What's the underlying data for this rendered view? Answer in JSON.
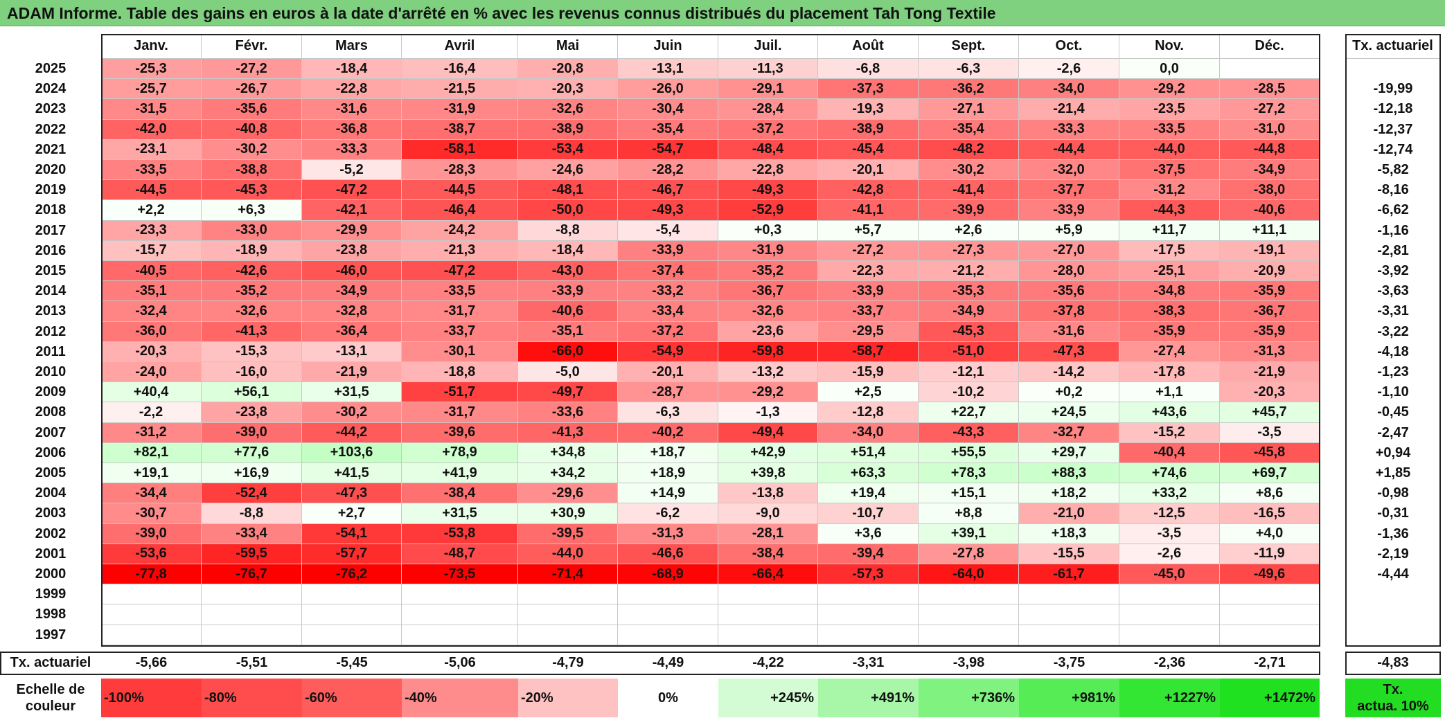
{
  "title": "ADAM Informe. Table des gains en euros à la date d'arrêté en % avec les revenus connus distribués du placement Tah Tong Textile",
  "months": [
    "Janv.",
    "Févr.",
    "Mars",
    "Avril",
    "Mai",
    "Juin",
    "Juil.",
    "Août",
    "Sept.",
    "Oct.",
    "Nov.",
    "Déc."
  ],
  "rate_header": "Tx. actuariel",
  "rows": [
    {
      "year": "2025",
      "values": [
        "-25,3",
        "-27,2",
        "-18,4",
        "-16,4",
        "-20,8",
        "-13,1",
        "-11,3",
        "-6,8",
        "-6,3",
        "-2,6",
        "0,0",
        ""
      ],
      "rate": ""
    },
    {
      "year": "2024",
      "values": [
        "-25,7",
        "-26,7",
        "-22,8",
        "-21,5",
        "-20,3",
        "-26,0",
        "-29,1",
        "-37,3",
        "-36,2",
        "-34,0",
        "-29,2",
        "-28,5"
      ],
      "rate": "-19,99"
    },
    {
      "year": "2023",
      "values": [
        "-31,5",
        "-35,6",
        "-31,6",
        "-31,9",
        "-32,6",
        "-30,4",
        "-28,4",
        "-19,3",
        "-27,1",
        "-21,4",
        "-23,5",
        "-27,2"
      ],
      "rate": "-12,18"
    },
    {
      "year": "2022",
      "values": [
        "-42,0",
        "-40,8",
        "-36,8",
        "-38,7",
        "-38,9",
        "-35,4",
        "-37,2",
        "-38,9",
        "-35,4",
        "-33,3",
        "-33,5",
        "-31,0"
      ],
      "rate": "-12,37"
    },
    {
      "year": "2021",
      "values": [
        "-23,1",
        "-30,2",
        "-33,3",
        "-58,1",
        "-53,4",
        "-54,7",
        "-48,4",
        "-45,4",
        "-48,2",
        "-44,4",
        "-44,0",
        "-44,8"
      ],
      "rate": "-12,74"
    },
    {
      "year": "2020",
      "values": [
        "-33,5",
        "-38,8",
        "-5,2",
        "-28,3",
        "-24,6",
        "-28,2",
        "-22,8",
        "-20,1",
        "-30,2",
        "-32,0",
        "-37,5",
        "-34,9"
      ],
      "rate": "-5,82"
    },
    {
      "year": "2019",
      "values": [
        "-44,5",
        "-45,3",
        "-47,2",
        "-44,5",
        "-48,1",
        "-46,7",
        "-49,3",
        "-42,8",
        "-41,4",
        "-37,7",
        "-31,2",
        "-38,0"
      ],
      "rate": "-8,16"
    },
    {
      "year": "2018",
      "values": [
        "+2,2",
        "+6,3",
        "-42,1",
        "-46,4",
        "-50,0",
        "-49,3",
        "-52,9",
        "-41,1",
        "-39,9",
        "-33,9",
        "-44,3",
        "-40,6"
      ],
      "rate": "-6,62"
    },
    {
      "year": "2017",
      "values": [
        "-23,3",
        "-33,0",
        "-29,9",
        "-24,2",
        "-8,8",
        "-5,4",
        "+0,3",
        "+5,7",
        "+2,6",
        "+5,9",
        "+11,7",
        "+11,1"
      ],
      "rate": "-1,16"
    },
    {
      "year": "2016",
      "values": [
        "-15,7",
        "-18,9",
        "-23,8",
        "-21,3",
        "-18,4",
        "-33,9",
        "-31,9",
        "-27,2",
        "-27,3",
        "-27,0",
        "-17,5",
        "-19,1"
      ],
      "rate": "-2,81"
    },
    {
      "year": "2015",
      "values": [
        "-40,5",
        "-42,6",
        "-46,0",
        "-47,2",
        "-43,0",
        "-37,4",
        "-35,2",
        "-22,3",
        "-21,2",
        "-28,0",
        "-25,1",
        "-20,9"
      ],
      "rate": "-3,92"
    },
    {
      "year": "2014",
      "values": [
        "-35,1",
        "-35,2",
        "-34,9",
        "-33,5",
        "-33,9",
        "-33,2",
        "-36,7",
        "-33,9",
        "-35,3",
        "-35,6",
        "-34,8",
        "-35,9"
      ],
      "rate": "-3,63"
    },
    {
      "year": "2013",
      "values": [
        "-32,4",
        "-32,6",
        "-32,8",
        "-31,7",
        "-40,6",
        "-33,4",
        "-32,6",
        "-33,7",
        "-34,9",
        "-37,8",
        "-38,3",
        "-36,7"
      ],
      "rate": "-3,31"
    },
    {
      "year": "2012",
      "values": [
        "-36,0",
        "-41,3",
        "-36,4",
        "-33,7",
        "-35,1",
        "-37,2",
        "-23,6",
        "-29,5",
        "-45,3",
        "-31,6",
        "-35,9",
        "-35,9"
      ],
      "rate": "-3,22"
    },
    {
      "year": "2011",
      "values": [
        "-20,3",
        "-15,3",
        "-13,1",
        "-30,1",
        "-66,0",
        "-54,9",
        "-59,8",
        "-58,7",
        "-51,0",
        "-47,3",
        "-27,4",
        "-31,3"
      ],
      "rate": "-4,18"
    },
    {
      "year": "2010",
      "values": [
        "-24,0",
        "-16,0",
        "-21,9",
        "-18,8",
        "-5,0",
        "-20,1",
        "-13,2",
        "-15,9",
        "-12,1",
        "-14,2",
        "-17,8",
        "-21,9"
      ],
      "rate": "-1,23"
    },
    {
      "year": "2009",
      "values": [
        "+40,4",
        "+56,1",
        "+31,5",
        "-51,7",
        "-49,7",
        "-28,7",
        "-29,2",
        "+2,5",
        "-10,2",
        "+0,2",
        "+1,1",
        "-20,3"
      ],
      "rate": "-1,10"
    },
    {
      "year": "2008",
      "values": [
        "-2,2",
        "-23,8",
        "-30,2",
        "-31,7",
        "-33,6",
        "-6,3",
        "-1,3",
        "-12,8",
        "+22,7",
        "+24,5",
        "+43,6",
        "+45,7"
      ],
      "rate": "-0,45"
    },
    {
      "year": "2007",
      "values": [
        "-31,2",
        "-39,0",
        "-44,2",
        "-39,6",
        "-41,3",
        "-40,2",
        "-49,4",
        "-34,0",
        "-43,3",
        "-32,7",
        "-15,2",
        "-3,5"
      ],
      "rate": "-2,47"
    },
    {
      "year": "2006",
      "values": [
        "+82,1",
        "+77,6",
        "+103,6",
        "+78,9",
        "+34,8",
        "+18,7",
        "+42,9",
        "+51,4",
        "+55,5",
        "+29,7",
        "-40,4",
        "-45,8"
      ],
      "rate": "+0,94"
    },
    {
      "year": "2005",
      "values": [
        "+19,1",
        "+16,9",
        "+41,5",
        "+41,9",
        "+34,2",
        "+18,9",
        "+39,8",
        "+63,3",
        "+78,3",
        "+88,3",
        "+74,6",
        "+69,7"
      ],
      "rate": "+1,85"
    },
    {
      "year": "2004",
      "values": [
        "-34,4",
        "-52,4",
        "-47,3",
        "-38,4",
        "-29,6",
        "+14,9",
        "-13,8",
        "+19,4",
        "+15,1",
        "+18,2",
        "+33,2",
        "+8,6"
      ],
      "rate": "-0,98"
    },
    {
      "year": "2003",
      "values": [
        "-30,7",
        "-8,8",
        "+2,7",
        "+31,5",
        "+30,9",
        "-6,2",
        "-9,0",
        "-10,7",
        "+8,8",
        "-21,0",
        "-12,5",
        "-16,5"
      ],
      "rate": "-0,31"
    },
    {
      "year": "2002",
      "values": [
        "-39,0",
        "-33,4",
        "-54,1",
        "-53,8",
        "-39,5",
        "-31,3",
        "-28,1",
        "+3,6",
        "+39,1",
        "+18,3",
        "-3,5",
        "+4,0"
      ],
      "rate": "-1,36"
    },
    {
      "year": "2001",
      "values": [
        "-53,6",
        "-59,5",
        "-57,7",
        "-48,7",
        "-44,0",
        "-46,6",
        "-38,4",
        "-39,4",
        "-27,8",
        "-15,5",
        "-2,6",
        "-11,9"
      ],
      "rate": "-2,19"
    },
    {
      "year": "2000",
      "values": [
        "-77,8",
        "-76,7",
        "-76,2",
        "-73,5",
        "-71,4",
        "-68,9",
        "-66,4",
        "-57,3",
        "-64,0",
        "-61,7",
        "-45,0",
        "-49,6"
      ],
      "rate": "-4,44"
    },
    {
      "year": "1999",
      "values": [
        "",
        "",
        "",
        "",
        "",
        "",
        "",
        "",
        "",
        "",
        "",
        ""
      ],
      "rate": ""
    },
    {
      "year": "1998",
      "values": [
        "",
        "",
        "",
        "",
        "",
        "",
        "",
        "",
        "",
        "",
        "",
        ""
      ],
      "rate": ""
    },
    {
      "year": "1997",
      "values": [
        "",
        "",
        "",
        "",
        "",
        "",
        "",
        "",
        "",
        "",
        "",
        ""
      ],
      "rate": ""
    }
  ],
  "footer": {
    "label": "Tx. actuariel",
    "values": [
      "-5,66",
      "-5,51",
      "-5,45",
      "-5,06",
      "-4,79",
      "-4,49",
      "-4,22",
      "-3,31",
      "-3,98",
      "-3,75",
      "-2,36",
      "-2,71"
    ],
    "total": "-4,83"
  },
  "scale": {
    "label_line1": "Echelle de",
    "label_line2": "couleur",
    "steps": [
      {
        "label": "-100%",
        "color": "#ff3b3b"
      },
      {
        "label": "-80%",
        "color": "#ff4d4d"
      },
      {
        "label": "-60%",
        "color": "#ff5c5c"
      },
      {
        "label": "-40%",
        "color": "#ff8c8c"
      },
      {
        "label": "-20%",
        "color": "#ffc2c2"
      },
      {
        "label": "0%",
        "color": "#ffffff"
      },
      {
        "label": "+245%",
        "color": "#d4fcd4"
      },
      {
        "label": "+491%",
        "color": "#a8f7a8"
      },
      {
        "label": "+736%",
        "color": "#7ff27f"
      },
      {
        "label": "+981%",
        "color": "#55ec55"
      },
      {
        "label": "+1227%",
        "color": "#33e633"
      },
      {
        "label": "+1472%",
        "color": "#1fe11f"
      }
    ],
    "goal_line1": "Tx.",
    "goal_line2": "actua. 10%",
    "goal_color": "#22dd22"
  }
}
